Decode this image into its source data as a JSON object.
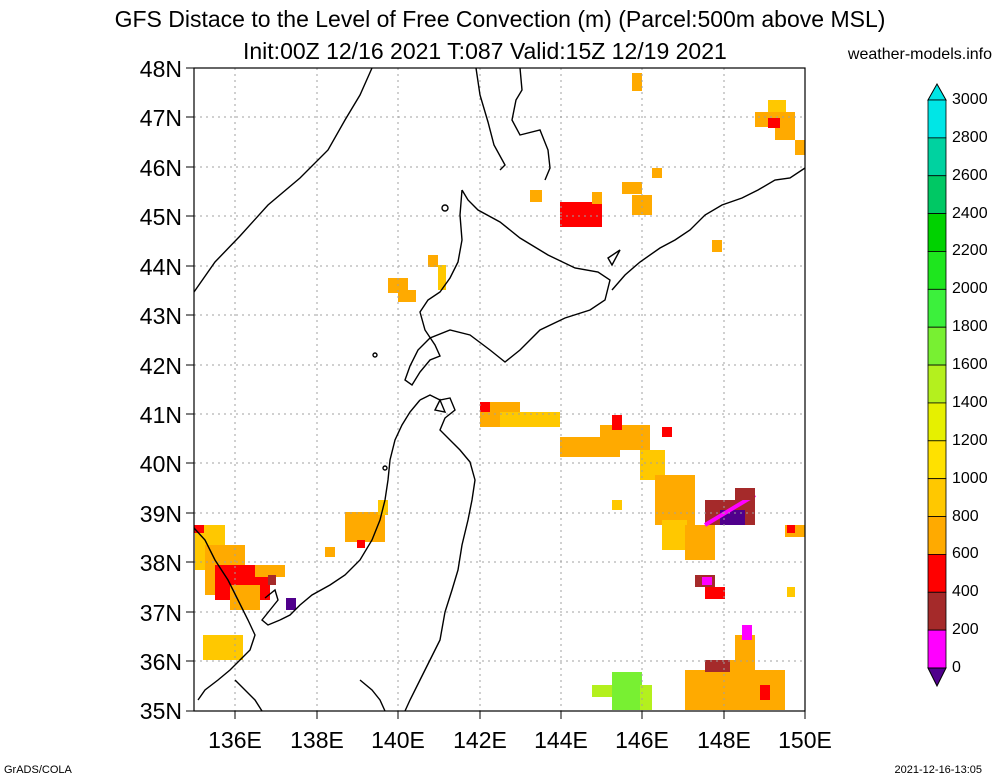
{
  "title": "GFS Distace to the Level of Free Convection (m) (Parcel:500m above MSL)",
  "subtitle": "Init:00Z 12/16 2021 T:087 Valid:15Z 12/19 2021",
  "site": "weather-models.info",
  "lat_labels": [
    "48N",
    "47N",
    "46N",
    "45N",
    "44N",
    "43N",
    "42N",
    "41N",
    "40N",
    "39N",
    "38N",
    "37N",
    "36N",
    "35N"
  ],
  "lon_labels": [
    "136E",
    "138E",
    "140E",
    "142E",
    "144E",
    "146E",
    "148E",
    "150E"
  ],
  "colorbar": {
    "labels": [
      "3000",
      "2800",
      "2600",
      "2400",
      "2200",
      "2000",
      "1800",
      "1600",
      "1400",
      "1200",
      "1000",
      "800",
      "600",
      "400",
      "200",
      "0"
    ],
    "colors": [
      "#00e6e6",
      "#00d2a0",
      "#00c864",
      "#00d200",
      "#1ee61e",
      "#3cf03c",
      "#78f032",
      "#b4f01e",
      "#e6f000",
      "#ffe100",
      "#ffc800",
      "#ffaa00",
      "#ff0000",
      "#a52a2a",
      "#ff00ff",
      "#50008c"
    ]
  },
  "footer_left": "GrADS/COLA",
  "footer_right": "2021-12-16-13:05"
}
